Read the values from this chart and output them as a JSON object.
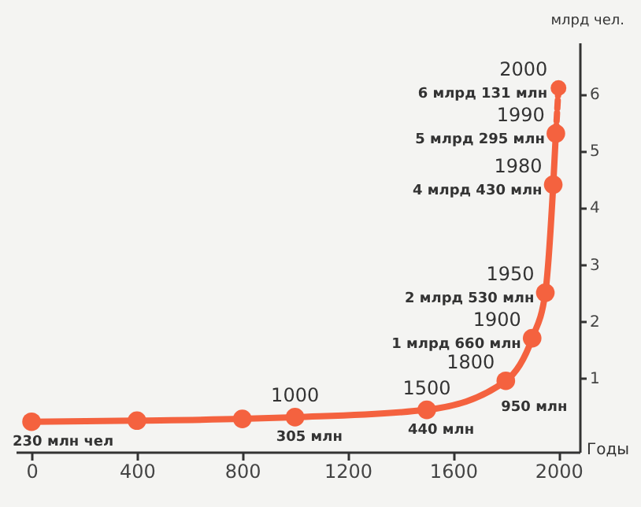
{
  "chart_data": {
    "type": "line",
    "xlabel": "Годы",
    "ylabel": "млрд чел.",
    "series": [
      {
        "color": "#f4623f",
        "marker": "circle",
        "line_style": "solid",
        "x": [
          0,
          400,
          800,
          1000,
          1500,
          1800,
          1900,
          1950,
          1980,
          1990
        ],
        "values": [
          0.23,
          0.25,
          0.28,
          0.31,
          0.44,
          0.95,
          1.7,
          2.5,
          4.4,
          5.3
        ]
      },
      {
        "color": "#f4623f",
        "marker": "circle",
        "line_style": "dashed",
        "x": [
          1990,
          2000
        ],
        "values": [
          5.3,
          6.1
        ]
      }
    ],
    "annotations": [
      {
        "text": "230 млн чел",
        "x": 0,
        "y": 0.23
      },
      {
        "text": "1000",
        "x": 1000,
        "y": 0.31
      },
      {
        "text": "305 млн",
        "x": 1000,
        "y": 0.31
      },
      {
        "text": "1500",
        "x": 1500,
        "y": 0.44
      },
      {
        "text": "440 млн",
        "x": 1500,
        "y": 0.44
      },
      {
        "text": "1800",
        "x": 1800,
        "y": 0.95
      },
      {
        "text": "950 млн",
        "x": 1800,
        "y": 0.95
      },
      {
        "text": "1900",
        "x": 1900,
        "y": 1.7
      },
      {
        "text": "1 млрд 660 млн",
        "x": 1900,
        "y": 1.7
      },
      {
        "text": "1950",
        "x": 1950,
        "y": 2.5
      },
      {
        "text": "2 млрд 530 млн",
        "x": 1950,
        "y": 2.5
      },
      {
        "text": "1980",
        "x": 1980,
        "y": 4.4
      },
      {
        "text": "4 млрд 430 млн",
        "x": 1980,
        "y": 4.4
      },
      {
        "text": "1990",
        "x": 1990,
        "y": 5.3
      },
      {
        "text": "5 млрд 295 млн",
        "x": 1990,
        "y": 5.3
      },
      {
        "text": "2000",
        "x": 2000,
        "y": 6.1
      },
      {
        "text": "6 млрд 131 млн",
        "x": 2000,
        "y": 6.1
      }
    ],
    "xlim": [
      -60,
      2080
    ],
    "xticks": [
      0,
      400,
      800,
      1200,
      1600,
      2000
    ],
    "ylim": [
      -0.3,
      6.9
    ],
    "yticks": [
      1,
      2,
      3,
      4,
      5,
      6
    ],
    "grid": false
  }
}
